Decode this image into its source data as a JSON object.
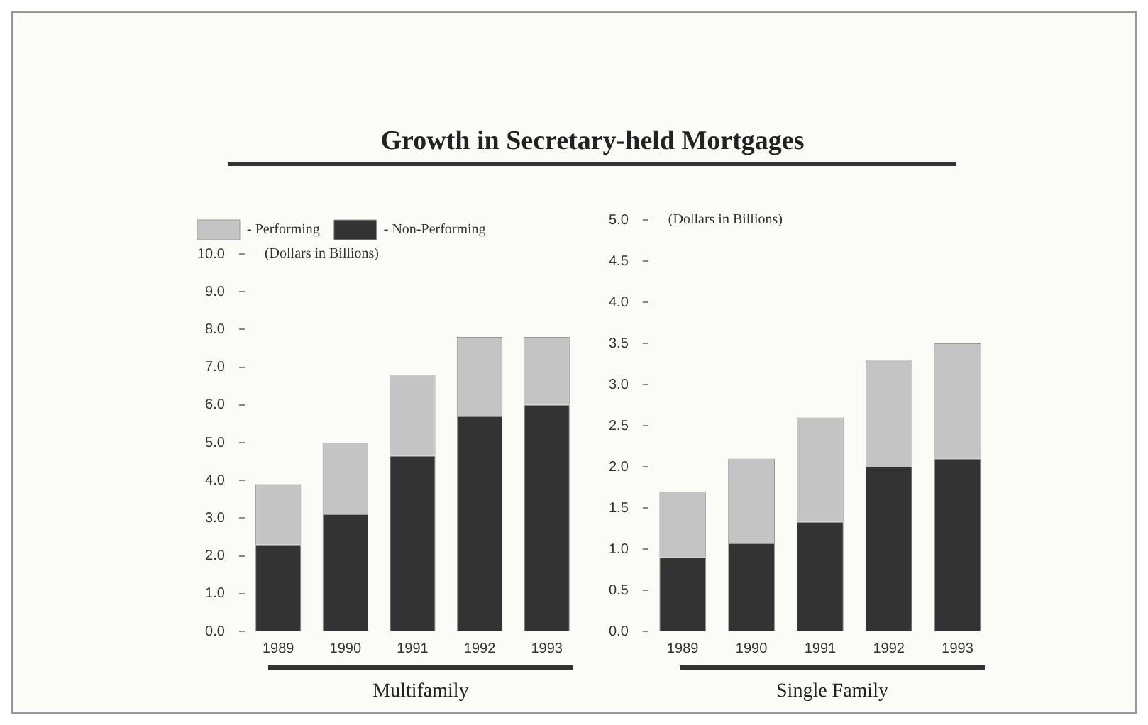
{
  "chart_data": [
    {
      "type": "bar",
      "title": "Growth in Secretary-held Mortgages",
      "xlabel": "Multifamily",
      "ylabel": "(Dollars in Billions)",
      "categories": [
        "1989",
        "1990",
        "1991",
        "1992",
        "1993"
      ],
      "stacked": true,
      "series": [
        {
          "name": "- Non-Performing",
          "color": "#333333",
          "values": [
            2.3,
            3.1,
            4.65,
            5.7,
            6.0
          ]
        },
        {
          "name": "- Performing",
          "color": "#c4c4c4",
          "values": [
            1.6,
            1.9,
            2.15,
            2.1,
            1.8
          ]
        }
      ],
      "ylim": [
        0,
        10
      ],
      "yticks": [
        {
          "value": 0,
          "label": "0.0"
        },
        {
          "value": 1,
          "label": "1.0"
        },
        {
          "value": 2,
          "label": "2.0"
        },
        {
          "value": 3,
          "label": "3.0"
        },
        {
          "value": 4,
          "label": "4.0"
        },
        {
          "value": 5,
          "label": "5.0"
        },
        {
          "value": 6,
          "label": "6.0"
        },
        {
          "value": 7,
          "label": "7.0"
        },
        {
          "value": 8,
          "label": "8.0"
        },
        {
          "value": 9,
          "label": "9.0"
        },
        {
          "value": 10,
          "label": "10.0"
        }
      ],
      "grid": false,
      "legend": "top left"
    },
    {
      "type": "bar",
      "xlabel": "Single Family",
      "ylabel": "(Dollars in Billions)",
      "categories": [
        "1989",
        "1990",
        "1991",
        "1992",
        "1993"
      ],
      "stacked": true,
      "series": [
        {
          "color": "#333333",
          "values": [
            0.9,
            1.07,
            1.33,
            2.0,
            2.1
          ]
        },
        {
          "color": "#c4c4c4",
          "values": [
            0.8,
            1.03,
            1.27,
            1.3,
            1.4
          ]
        }
      ],
      "ylim": [
        0,
        5
      ],
      "yticks": [
        {
          "value": 0,
          "label": "0.0"
        },
        {
          "value": 0.5,
          "label": "0.5"
        },
        {
          "value": 1,
          "label": "1.0"
        },
        {
          "value": 1.5,
          "label": "1.5"
        },
        {
          "value": 2,
          "label": "2.0"
        },
        {
          "value": 2.5,
          "label": "2.5"
        },
        {
          "value": 3,
          "label": "3.0"
        },
        {
          "value": 3.5,
          "label": "3.5"
        },
        {
          "value": 4,
          "label": "4.0"
        },
        {
          "value": 4.5,
          "label": "4.5"
        },
        {
          "value": 5,
          "label": "5.0"
        }
      ],
      "grid": false
    }
  ]
}
